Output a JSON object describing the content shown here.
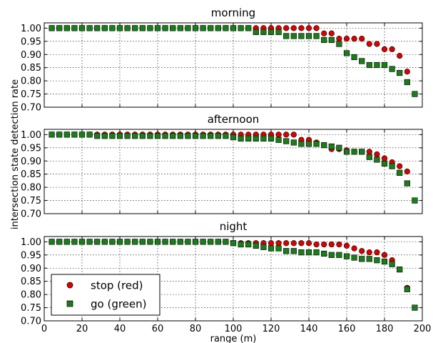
{
  "figure": {
    "ylabel": "intersection state detection rate",
    "xlabel": "range (m)"
  },
  "legend": {
    "items": [
      {
        "label": "stop (red)",
        "color": "#dd0000",
        "marker": "circle"
      },
      {
        "label": "go (green)",
        "color": "#1a7d1a",
        "marker": "square"
      }
    ],
    "placement": "lower-left of bottom panel"
  },
  "chart_data": [
    {
      "type": "scatter",
      "title": "morning",
      "xlim": [
        0,
        200
      ],
      "ylim": [
        0.7,
        1.02
      ],
      "xticks": [
        "0",
        "20",
        "40",
        "60",
        "80",
        "100",
        "120",
        "140",
        "160",
        "180",
        "200"
      ],
      "yticks": [
        "0.70",
        "0.75",
        "0.80",
        "0.85",
        "0.90",
        "0.95",
        "1.00"
      ],
      "grid": true,
      "series": [
        {
          "name": "stop (red)",
          "color": "#dd0000",
          "x": [
            4,
            8,
            12,
            16,
            20,
            24,
            28,
            32,
            36,
            40,
            44,
            48,
            52,
            56,
            60,
            64,
            68,
            72,
            76,
            80,
            84,
            88,
            92,
            96,
            100,
            104,
            108,
            112,
            116,
            120,
            124,
            128,
            132,
            136,
            140,
            144,
            148,
            152,
            156,
            160,
            164,
            168,
            172,
            176,
            180,
            184,
            188,
            192,
            196
          ],
          "y": [
            1.0,
            1.0,
            1.0,
            1.0,
            1.0,
            1.0,
            1.0,
            1.0,
            1.0,
            1.0,
            1.0,
            1.0,
            1.0,
            1.0,
            1.0,
            1.0,
            1.0,
            1.0,
            1.0,
            1.0,
            1.0,
            1.0,
            1.0,
            1.0,
            1.0,
            1.0,
            1.0,
            1.0,
            1.0,
            1.0,
            1.0,
            1.0,
            1.0,
            1.0,
            1.0,
            1.0,
            0.98,
            0.98,
            0.96,
            0.96,
            0.96,
            0.96,
            0.94,
            0.94,
            0.92,
            0.92,
            0.895,
            0.835,
            0.75
          ]
        },
        {
          "name": "go (green)",
          "color": "#1a7d1a",
          "x": [
            4,
            8,
            12,
            16,
            20,
            24,
            28,
            32,
            36,
            40,
            44,
            48,
            52,
            56,
            60,
            64,
            68,
            72,
            76,
            80,
            84,
            88,
            92,
            96,
            100,
            104,
            108,
            112,
            116,
            120,
            124,
            128,
            132,
            136,
            140,
            144,
            148,
            152,
            156,
            160,
            164,
            168,
            172,
            176,
            180,
            184,
            188,
            192,
            196
          ],
          "y": [
            1.0,
            1.0,
            1.0,
            1.0,
            1.0,
            1.0,
            1.0,
            1.0,
            1.0,
            1.0,
            1.0,
            1.0,
            1.0,
            1.0,
            1.0,
            1.0,
            1.0,
            1.0,
            1.0,
            1.0,
            1.0,
            1.0,
            1.0,
            1.0,
            1.0,
            1.0,
            1.0,
            0.985,
            0.985,
            0.985,
            0.985,
            0.97,
            0.97,
            0.97,
            0.97,
            0.97,
            0.955,
            0.955,
            0.94,
            0.905,
            0.89,
            0.875,
            0.86,
            0.86,
            0.86,
            0.845,
            0.83,
            0.795,
            0.75
          ]
        }
      ]
    },
    {
      "type": "scatter",
      "title": "afternoon",
      "xlim": [
        0,
        200
      ],
      "ylim": [
        0.7,
        1.02
      ],
      "xticks": [
        "0",
        "20",
        "40",
        "60",
        "80",
        "100",
        "120",
        "140",
        "160",
        "180",
        "200"
      ],
      "yticks": [
        "0.70",
        "0.75",
        "0.80",
        "0.85",
        "0.90",
        "0.95",
        "1.00"
      ],
      "grid": true,
      "series": [
        {
          "name": "stop (red)",
          "color": "#dd0000",
          "x": [
            4,
            8,
            12,
            16,
            20,
            24,
            28,
            32,
            36,
            40,
            44,
            48,
            52,
            56,
            60,
            64,
            68,
            72,
            76,
            80,
            84,
            88,
            92,
            96,
            100,
            104,
            108,
            112,
            116,
            120,
            124,
            128,
            132,
            136,
            140,
            144,
            148,
            152,
            156,
            160,
            164,
            168,
            172,
            176,
            180,
            184,
            188,
            192,
            196
          ],
          "y": [
            1.0,
            1.0,
            1.0,
            1.0,
            1.0,
            1.0,
            1.0,
            1.0,
            1.0,
            1.0,
            1.0,
            1.0,
            1.0,
            1.0,
            1.0,
            1.0,
            1.0,
            1.0,
            1.0,
            1.0,
            1.0,
            1.0,
            1.0,
            1.0,
            1.0,
            1.0,
            1.0,
            1.0,
            1.0,
            1.0,
            1.0,
            1.0,
            1.0,
            0.98,
            0.98,
            0.97,
            0.96,
            0.945,
            0.945,
            0.94,
            0.935,
            0.935,
            0.935,
            0.925,
            0.91,
            0.895,
            0.88,
            0.86,
            0.75
          ]
        },
        {
          "name": "go (green)",
          "color": "#1a7d1a",
          "x": [
            4,
            8,
            12,
            16,
            20,
            24,
            28,
            32,
            36,
            40,
            44,
            48,
            52,
            56,
            60,
            64,
            68,
            72,
            76,
            80,
            84,
            88,
            92,
            96,
            100,
            104,
            108,
            112,
            116,
            120,
            124,
            128,
            132,
            136,
            140,
            144,
            148,
            152,
            156,
            160,
            164,
            168,
            172,
            176,
            180,
            184,
            188,
            192,
            196
          ],
          "y": [
            1.0,
            1.0,
            1.0,
            1.0,
            1.0,
            1.0,
            0.995,
            0.995,
            0.995,
            0.995,
            0.995,
            0.995,
            0.995,
            0.995,
            0.995,
            0.995,
            0.995,
            0.995,
            0.995,
            0.995,
            0.995,
            0.995,
            0.995,
            0.995,
            0.99,
            0.985,
            0.985,
            0.985,
            0.985,
            0.985,
            0.98,
            0.975,
            0.97,
            0.965,
            0.965,
            0.965,
            0.96,
            0.955,
            0.95,
            0.935,
            0.935,
            0.935,
            0.915,
            0.905,
            0.89,
            0.88,
            0.855,
            0.815,
            0.75
          ]
        }
      ]
    },
    {
      "type": "scatter",
      "title": "night",
      "xlim": [
        0,
        200
      ],
      "ylim": [
        0.7,
        1.02
      ],
      "xticks": [
        "0",
        "20",
        "40",
        "60",
        "80",
        "100",
        "120",
        "140",
        "160",
        "180",
        "200"
      ],
      "yticks": [
        "0.70",
        "0.75",
        "0.80",
        "0.85",
        "0.90",
        "0.95",
        "1.00"
      ],
      "xlabel": "range (m)",
      "grid": true,
      "series": [
        {
          "name": "stop (red)",
          "color": "#dd0000",
          "x": [
            4,
            8,
            12,
            16,
            20,
            24,
            28,
            32,
            36,
            40,
            44,
            48,
            52,
            56,
            60,
            64,
            68,
            72,
            76,
            80,
            84,
            88,
            92,
            96,
            100,
            104,
            108,
            112,
            116,
            120,
            124,
            128,
            132,
            136,
            140,
            144,
            148,
            152,
            156,
            160,
            164,
            168,
            172,
            176,
            180,
            184,
            188,
            192,
            196
          ],
          "y": [
            1.0,
            1.0,
            1.0,
            1.0,
            1.0,
            1.0,
            1.0,
            1.0,
            1.0,
            1.0,
            1.0,
            1.0,
            1.0,
            1.0,
            1.0,
            1.0,
            1.0,
            1.0,
            1.0,
            1.0,
            1.0,
            1.0,
            1.0,
            1.0,
            0.995,
            0.995,
            0.995,
            0.995,
            0.995,
            0.995,
            0.995,
            0.995,
            0.995,
            0.995,
            0.995,
            0.99,
            0.99,
            0.99,
            0.99,
            0.985,
            0.975,
            0.965,
            0.96,
            0.96,
            0.95,
            0.93,
            0.895,
            0.825,
            0.75
          ]
        },
        {
          "name": "go (green)",
          "color": "#1a7d1a",
          "x": [
            4,
            8,
            12,
            16,
            20,
            24,
            28,
            32,
            36,
            40,
            44,
            48,
            52,
            56,
            60,
            64,
            68,
            72,
            76,
            80,
            84,
            88,
            92,
            96,
            100,
            104,
            108,
            112,
            116,
            120,
            124,
            128,
            132,
            136,
            140,
            144,
            148,
            152,
            156,
            160,
            164,
            168,
            172,
            176,
            180,
            184,
            188,
            192,
            196
          ],
          "y": [
            1.0,
            1.0,
            1.0,
            1.0,
            1.0,
            1.0,
            1.0,
            1.0,
            1.0,
            1.0,
            1.0,
            1.0,
            1.0,
            1.0,
            1.0,
            1.0,
            1.0,
            1.0,
            1.0,
            1.0,
            1.0,
            1.0,
            1.0,
            1.0,
            0.995,
            0.99,
            0.99,
            0.985,
            0.98,
            0.975,
            0.975,
            0.965,
            0.965,
            0.96,
            0.96,
            0.96,
            0.955,
            0.95,
            0.95,
            0.945,
            0.94,
            0.935,
            0.935,
            0.93,
            0.925,
            0.915,
            0.895,
            0.82,
            0.75
          ]
        }
      ]
    }
  ]
}
